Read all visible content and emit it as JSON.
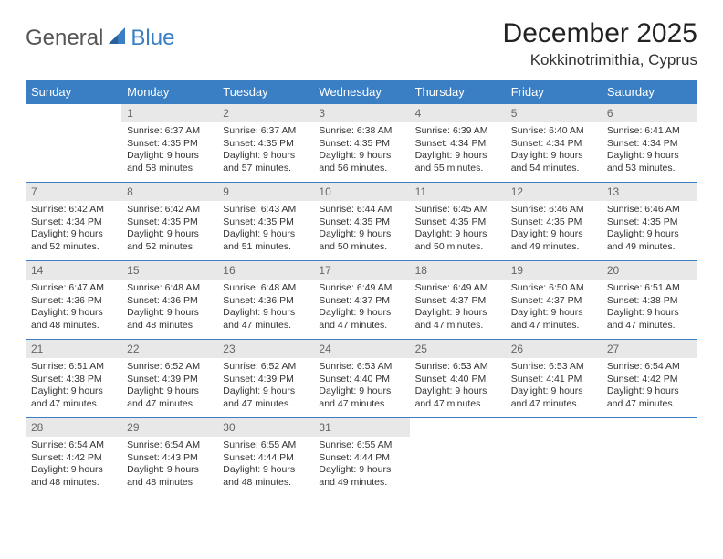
{
  "logo": {
    "general": "General",
    "blue": "Blue"
  },
  "header": {
    "month_title": "December 2025",
    "location": "Kokkinotrimithia, Cyprus"
  },
  "colors": {
    "brand_blue": "#3a7fc4",
    "daynum_bg": "#e8e8e8",
    "text": "#333333"
  },
  "weekdays": [
    "Sunday",
    "Monday",
    "Tuesday",
    "Wednesday",
    "Thursday",
    "Friday",
    "Saturday"
  ],
  "days": [
    {
      "n": "",
      "sunrise": "",
      "sunset": "",
      "daylight": ""
    },
    {
      "n": "1",
      "sunrise": "6:37 AM",
      "sunset": "4:35 PM",
      "daylight": "9 hours and 58 minutes."
    },
    {
      "n": "2",
      "sunrise": "6:37 AM",
      "sunset": "4:35 PM",
      "daylight": "9 hours and 57 minutes."
    },
    {
      "n": "3",
      "sunrise": "6:38 AM",
      "sunset": "4:35 PM",
      "daylight": "9 hours and 56 minutes."
    },
    {
      "n": "4",
      "sunrise": "6:39 AM",
      "sunset": "4:34 PM",
      "daylight": "9 hours and 55 minutes."
    },
    {
      "n": "5",
      "sunrise": "6:40 AM",
      "sunset": "4:34 PM",
      "daylight": "9 hours and 54 minutes."
    },
    {
      "n": "6",
      "sunrise": "6:41 AM",
      "sunset": "4:34 PM",
      "daylight": "9 hours and 53 minutes."
    },
    {
      "n": "7",
      "sunrise": "6:42 AM",
      "sunset": "4:34 PM",
      "daylight": "9 hours and 52 minutes."
    },
    {
      "n": "8",
      "sunrise": "6:42 AM",
      "sunset": "4:35 PM",
      "daylight": "9 hours and 52 minutes."
    },
    {
      "n": "9",
      "sunrise": "6:43 AM",
      "sunset": "4:35 PM",
      "daylight": "9 hours and 51 minutes."
    },
    {
      "n": "10",
      "sunrise": "6:44 AM",
      "sunset": "4:35 PM",
      "daylight": "9 hours and 50 minutes."
    },
    {
      "n": "11",
      "sunrise": "6:45 AM",
      "sunset": "4:35 PM",
      "daylight": "9 hours and 50 minutes."
    },
    {
      "n": "12",
      "sunrise": "6:46 AM",
      "sunset": "4:35 PM",
      "daylight": "9 hours and 49 minutes."
    },
    {
      "n": "13",
      "sunrise": "6:46 AM",
      "sunset": "4:35 PM",
      "daylight": "9 hours and 49 minutes."
    },
    {
      "n": "14",
      "sunrise": "6:47 AM",
      "sunset": "4:36 PM",
      "daylight": "9 hours and 48 minutes."
    },
    {
      "n": "15",
      "sunrise": "6:48 AM",
      "sunset": "4:36 PM",
      "daylight": "9 hours and 48 minutes."
    },
    {
      "n": "16",
      "sunrise": "6:48 AM",
      "sunset": "4:36 PM",
      "daylight": "9 hours and 47 minutes."
    },
    {
      "n": "17",
      "sunrise": "6:49 AM",
      "sunset": "4:37 PM",
      "daylight": "9 hours and 47 minutes."
    },
    {
      "n": "18",
      "sunrise": "6:49 AM",
      "sunset": "4:37 PM",
      "daylight": "9 hours and 47 minutes."
    },
    {
      "n": "19",
      "sunrise": "6:50 AM",
      "sunset": "4:37 PM",
      "daylight": "9 hours and 47 minutes."
    },
    {
      "n": "20",
      "sunrise": "6:51 AM",
      "sunset": "4:38 PM",
      "daylight": "9 hours and 47 minutes."
    },
    {
      "n": "21",
      "sunrise": "6:51 AM",
      "sunset": "4:38 PM",
      "daylight": "9 hours and 47 minutes."
    },
    {
      "n": "22",
      "sunrise": "6:52 AM",
      "sunset": "4:39 PM",
      "daylight": "9 hours and 47 minutes."
    },
    {
      "n": "23",
      "sunrise": "6:52 AM",
      "sunset": "4:39 PM",
      "daylight": "9 hours and 47 minutes."
    },
    {
      "n": "24",
      "sunrise": "6:53 AM",
      "sunset": "4:40 PM",
      "daylight": "9 hours and 47 minutes."
    },
    {
      "n": "25",
      "sunrise": "6:53 AM",
      "sunset": "4:40 PM",
      "daylight": "9 hours and 47 minutes."
    },
    {
      "n": "26",
      "sunrise": "6:53 AM",
      "sunset": "4:41 PM",
      "daylight": "9 hours and 47 minutes."
    },
    {
      "n": "27",
      "sunrise": "6:54 AM",
      "sunset": "4:42 PM",
      "daylight": "9 hours and 47 minutes."
    },
    {
      "n": "28",
      "sunrise": "6:54 AM",
      "sunset": "4:42 PM",
      "daylight": "9 hours and 48 minutes."
    },
    {
      "n": "29",
      "sunrise": "6:54 AM",
      "sunset": "4:43 PM",
      "daylight": "9 hours and 48 minutes."
    },
    {
      "n": "30",
      "sunrise": "6:55 AM",
      "sunset": "4:44 PM",
      "daylight": "9 hours and 48 minutes."
    },
    {
      "n": "31",
      "sunrise": "6:55 AM",
      "sunset": "4:44 PM",
      "daylight": "9 hours and 49 minutes."
    },
    {
      "n": "",
      "sunrise": "",
      "sunset": "",
      "daylight": ""
    },
    {
      "n": "",
      "sunrise": "",
      "sunset": "",
      "daylight": ""
    },
    {
      "n": "",
      "sunrise": "",
      "sunset": "",
      "daylight": ""
    }
  ],
  "labels": {
    "sunrise": "Sunrise:",
    "sunset": "Sunset:",
    "daylight": "Daylight:"
  }
}
